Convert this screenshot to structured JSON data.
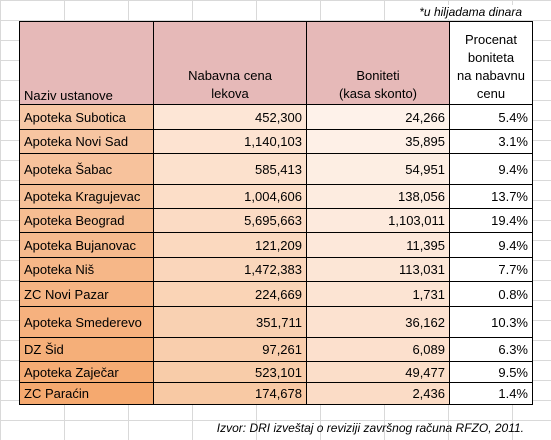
{
  "note": "*u hiljadama dinara",
  "headers": {
    "name": "Naziv ustanove",
    "price_l1": "Nabavna cena",
    "price_l2": "lekova",
    "bonus_l1": "Boniteti",
    "bonus_l2": "(kasa skonto)",
    "pct_l1": "Procenat",
    "pct_l2": "boniteta",
    "pct_l3": "na nabavnu",
    "pct_l4": "cenu"
  },
  "rows": [
    {
      "name": "Apoteka Subotica",
      "price": "452,300",
      "bonus": "24,266",
      "pct": "5.4%"
    },
    {
      "name": "Apoteka Novi Sad",
      "price": "1,140,103",
      "bonus": "35,895",
      "pct": "3.1%"
    },
    {
      "name": "Apoteka Šabac",
      "price": "585,413",
      "bonus": "54,951",
      "pct": "9.4%"
    },
    {
      "name": "Apoteka Kragujevac",
      "price": "1,004,606",
      "bonus": "138,056",
      "pct": "13.7%"
    },
    {
      "name": "Apoteka Beograd",
      "price": "5,695,663",
      "bonus": "1,103,011",
      "pct": "19.4%"
    },
    {
      "name": "Apoteka Bujanovac",
      "price": "121,209",
      "bonus": "11,395",
      "pct": "9.4%"
    },
    {
      "name": "Apoteka Niš",
      "price": "1,472,383",
      "bonus": "113,031",
      "pct": "7.7%"
    },
    {
      "name": "ZC Novi Pazar",
      "price": "224,669",
      "bonus": "1,731",
      "pct": "0.8%"
    },
    {
      "name": "Apoteka Smederevo",
      "price": "351,711",
      "bonus": "36,162",
      "pct": "10.3%"
    },
    {
      "name": "DZ Šid",
      "price": "97,261",
      "bonus": "6,089",
      "pct": "6.3%"
    },
    {
      "name": "Apoteka Zaječar",
      "price": "523,101",
      "bonus": "49,477",
      "pct": "9.5%"
    },
    {
      "name": "ZC Paraćin",
      "price": "174,678",
      "bonus": "2,436",
      "pct": "1.4%"
    }
  ],
  "source": "Izvor: DRI izveštaj o reviziji završnog računa RFZO, 2011.",
  "colors": {
    "header_fill": "#e6b9b8",
    "name_col_top": "#f7c8a6",
    "name_col_bottom": "#f5a96f",
    "price_col_top": "#fde6d6",
    "price_col_bottom": "#f8c9a4",
    "bonus_col_top": "#fef2ea",
    "bonus_col_bottom": "#fbdcc6"
  }
}
